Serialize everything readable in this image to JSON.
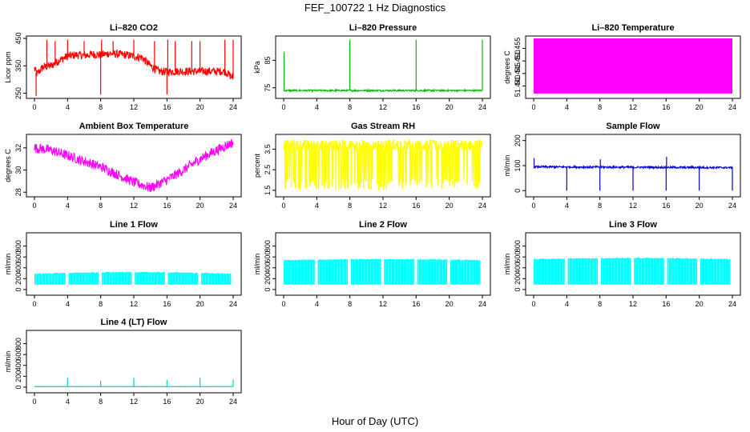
{
  "figure": {
    "title": "FEF_100722  1 Hz Diagnostics",
    "xlabel": "Hour of Day (UTC)"
  },
  "chart_data": [
    {
      "type": "line",
      "title": "Li–820 CO2",
      "ylabel": "Licor ppm",
      "color": "#ff0000",
      "xlim": [
        0,
        24
      ],
      "ylim": [
        240,
        450
      ],
      "xticks": [
        0,
        4,
        8,
        12,
        16,
        20,
        24
      ],
      "xtick_labels": [
        "0",
        "4",
        "8",
        "12",
        "16",
        "20",
        "24"
      ],
      "yticks": [
        250,
        350,
        450
      ],
      "ytick_labels": [
        "250",
        "350",
        "450"
      ],
      "x": [
        0,
        0.3,
        1,
        2,
        3,
        4,
        5,
        6,
        7,
        8,
        9,
        10,
        11,
        12,
        13,
        14,
        15,
        16,
        17,
        18,
        19,
        20,
        21,
        22,
        23,
        24
      ],
      "values": [
        340,
        320,
        345,
        350,
        370,
        385,
        390,
        388,
        392,
        390,
        395,
        393,
        390,
        385,
        380,
        350,
        330,
        328,
        330,
        330,
        330,
        330,
        330,
        330,
        330,
        305
      ],
      "noise": 15,
      "spikes": [
        [
          0.2,
          240
        ],
        [
          1.5,
          445
        ],
        [
          2.5,
          440
        ],
        [
          4.0,
          445
        ],
        [
          6.0,
          440
        ],
        [
          8.0,
          245
        ],
        [
          8.1,
          445
        ],
        [
          9.5,
          440
        ],
        [
          12.0,
          445
        ],
        [
          14.5,
          440
        ],
        [
          16.0,
          245
        ],
        [
          16.1,
          445
        ],
        [
          17.0,
          440
        ],
        [
          19.0,
          440
        ],
        [
          20.0,
          440
        ],
        [
          23.0,
          445
        ],
        [
          24.0,
          445
        ]
      ]
    },
    {
      "type": "line",
      "title": "Li–820 Pressure",
      "ylabel": "kPa",
      "color": "#00bb00",
      "xlim": [
        0,
        24
      ],
      "ylim": [
        72,
        93
      ],
      "xticks": [
        0,
        4,
        8,
        12,
        16,
        20,
        24
      ],
      "xtick_labels": [
        "0",
        "4",
        "8",
        "12",
        "16",
        "20",
        "24"
      ],
      "yticks": [
        75,
        85
      ],
      "ytick_labels": [
        "75",
        "85"
      ],
      "x": [
        0,
        0.5,
        24
      ],
      "values": [
        74,
        74,
        74
      ],
      "noise": 0.3,
      "spikes": [
        [
          0.05,
          88
        ],
        [
          8.0,
          92.5
        ],
        [
          16.0,
          92.5
        ],
        [
          24.0,
          92.5
        ]
      ]
    },
    {
      "type": "area",
      "title": "Li–820 Temperature",
      "ylabel": "degrees C",
      "color": "#ff00ff",
      "xlim": [
        0,
        24
      ],
      "ylim": [
        51.436,
        51.459
      ],
      "xticks": [
        0,
        4,
        8,
        12,
        16,
        20,
        24
      ],
      "xtick_labels": [
        "0",
        "4",
        "8",
        "12",
        "16",
        "20",
        "24"
      ],
      "yticks": [
        51.44,
        51.445,
        51.45,
        51.455
      ],
      "ytick_labels": [
        "51.440",
        "51.445",
        "51.450",
        "51.455"
      ],
      "band_low": 51.437,
      "band_high": 51.459
    },
    {
      "type": "line",
      "title": "Ambient Box Temperature",
      "ylabel": "degrees C",
      "color": "#ff00ff",
      "xlim": [
        0,
        24
      ],
      "ylim": [
        27.8,
        33
      ],
      "xticks": [
        0,
        4,
        8,
        12,
        16,
        20,
        24
      ],
      "xtick_labels": [
        "0",
        "4",
        "8",
        "12",
        "16",
        "20",
        "24"
      ],
      "yticks": [
        28,
        30,
        32
      ],
      "ytick_labels": [
        "28",
        "30",
        "32"
      ],
      "x": [
        0,
        2,
        4,
        6,
        8,
        10,
        12,
        14,
        16,
        18,
        20,
        22,
        24
      ],
      "values": [
        32.0,
        31.8,
        31.3,
        30.8,
        30.3,
        29.6,
        28.9,
        28.4,
        29.1,
        30.0,
        31.0,
        31.8,
        32.5
      ],
      "noise": 0.45,
      "spikes": []
    },
    {
      "type": "line",
      "title": "Gas Stream RH",
      "ylabel": "percent",
      "color": "#ffff00",
      "xlim": [
        0,
        24
      ],
      "ylim": [
        1.3,
        4.1
      ],
      "xticks": [
        0,
        4,
        8,
        12,
        16,
        20,
        24
      ],
      "xtick_labels": [
        "0",
        "4",
        "8",
        "12",
        "16",
        "20",
        "24"
      ],
      "yticks": [
        1.5,
        2.5,
        3.5
      ],
      "ytick_labels": [
        "1.5",
        "2.5",
        "3.5"
      ],
      "x": [
        0,
        24
      ],
      "values": [
        3.7,
        3.7
      ],
      "noise": 0.25,
      "dips_low": 1.5,
      "spikes": []
    },
    {
      "type": "line",
      "title": "Sample Flow",
      "ylabel": "ml/min",
      "color": "#0000dd",
      "xlim": [
        0,
        24
      ],
      "ylim": [
        -15,
        215
      ],
      "xticks": [
        0,
        4,
        8,
        12,
        16,
        20,
        24
      ],
      "xtick_labels": [
        "0",
        "4",
        "8",
        "12",
        "16",
        "20",
        "24"
      ],
      "yticks": [
        0,
        100,
        200
      ],
      "ytick_labels": [
        "0",
        "100",
        "200"
      ],
      "x": [
        0,
        24
      ],
      "values": [
        95,
        92
      ],
      "noise": 4,
      "spikes": [
        [
          0.05,
          130
        ],
        [
          4.0,
          0
        ],
        [
          8.0,
          0
        ],
        [
          8.05,
          125
        ],
        [
          12.0,
          0
        ],
        [
          16.0,
          0
        ],
        [
          16.05,
          135
        ],
        [
          20.0,
          0
        ],
        [
          24.0,
          0
        ]
      ]
    },
    {
      "type": "area",
      "title": "Line 1 Flow",
      "ylabel": "ml/min",
      "color": "#00ffff",
      "xlim": [
        0,
        24
      ],
      "ylim": [
        -60,
        1000
      ],
      "xticks": [
        0,
        4,
        8,
        12,
        16,
        20,
        24
      ],
      "xtick_labels": [
        "0",
        "4",
        "8",
        "12",
        "16",
        "20",
        "24"
      ],
      "yticks": [
        0,
        200,
        400,
        600,
        800
      ],
      "ytick_labels": [
        "0",
        "200",
        "400",
        "600",
        "800"
      ],
      "band_low": 90,
      "band_high": 290,
      "band_high_mid": 320,
      "gaps": [
        4,
        8,
        12,
        16,
        20,
        24
      ]
    },
    {
      "type": "area",
      "title": "Line 2 Flow",
      "ylabel": "ml/min",
      "color": "#00ffff",
      "xlim": [
        0,
        24
      ],
      "ylim": [
        -60,
        1000
      ],
      "xticks": [
        0,
        4,
        8,
        12,
        16,
        20,
        24
      ],
      "xtick_labels": [
        "0",
        "4",
        "8",
        "12",
        "16",
        "20",
        "24"
      ],
      "yticks": [
        0,
        200,
        400,
        600,
        800
      ],
      "ytick_labels": [
        "0",
        "200",
        "400",
        "600",
        "800"
      ],
      "band_low": 90,
      "band_high": 540,
      "band_high_mid": 560,
      "gaps": [
        4,
        8,
        12,
        16,
        20,
        24
      ]
    },
    {
      "type": "area",
      "title": "Line 3 Flow",
      "ylabel": "ml/min",
      "color": "#00ffff",
      "xlim": [
        0,
        24
      ],
      "ylim": [
        -60,
        1000
      ],
      "xticks": [
        0,
        4,
        8,
        12,
        16,
        20,
        24
      ],
      "xtick_labels": [
        "0",
        "4",
        "8",
        "12",
        "16",
        "20",
        "24"
      ],
      "yticks": [
        0,
        200,
        400,
        600,
        800
      ],
      "ytick_labels": [
        "0",
        "200",
        "400",
        "600",
        "800"
      ],
      "band_low": 90,
      "band_high": 560,
      "band_high_mid": 580,
      "gaps": [
        4,
        8,
        12,
        16,
        20,
        24
      ]
    },
    {
      "type": "line",
      "title": "Line 4 (LT) Flow",
      "ylabel": "ml/min",
      "color": "#00cccc",
      "xlim": [
        0,
        24
      ],
      "ylim": [
        -60,
        1000
      ],
      "xticks": [
        0,
        4,
        8,
        12,
        16,
        20,
        24
      ],
      "xtick_labels": [
        "0",
        "4",
        "8",
        "12",
        "16",
        "20",
        "24"
      ],
      "yticks": [
        0,
        200,
        400,
        600,
        800
      ],
      "ytick_labels": [
        "0",
        "200",
        "400",
        "600",
        "800"
      ],
      "x": [
        0,
        24
      ],
      "values": [
        10,
        10
      ],
      "noise": 3,
      "spikes": [
        [
          4.0,
          170
        ],
        [
          8.0,
          120
        ],
        [
          12.0,
          170
        ],
        [
          16.0,
          130
        ],
        [
          20.0,
          170
        ],
        [
          24.0,
          140
        ]
      ]
    }
  ]
}
